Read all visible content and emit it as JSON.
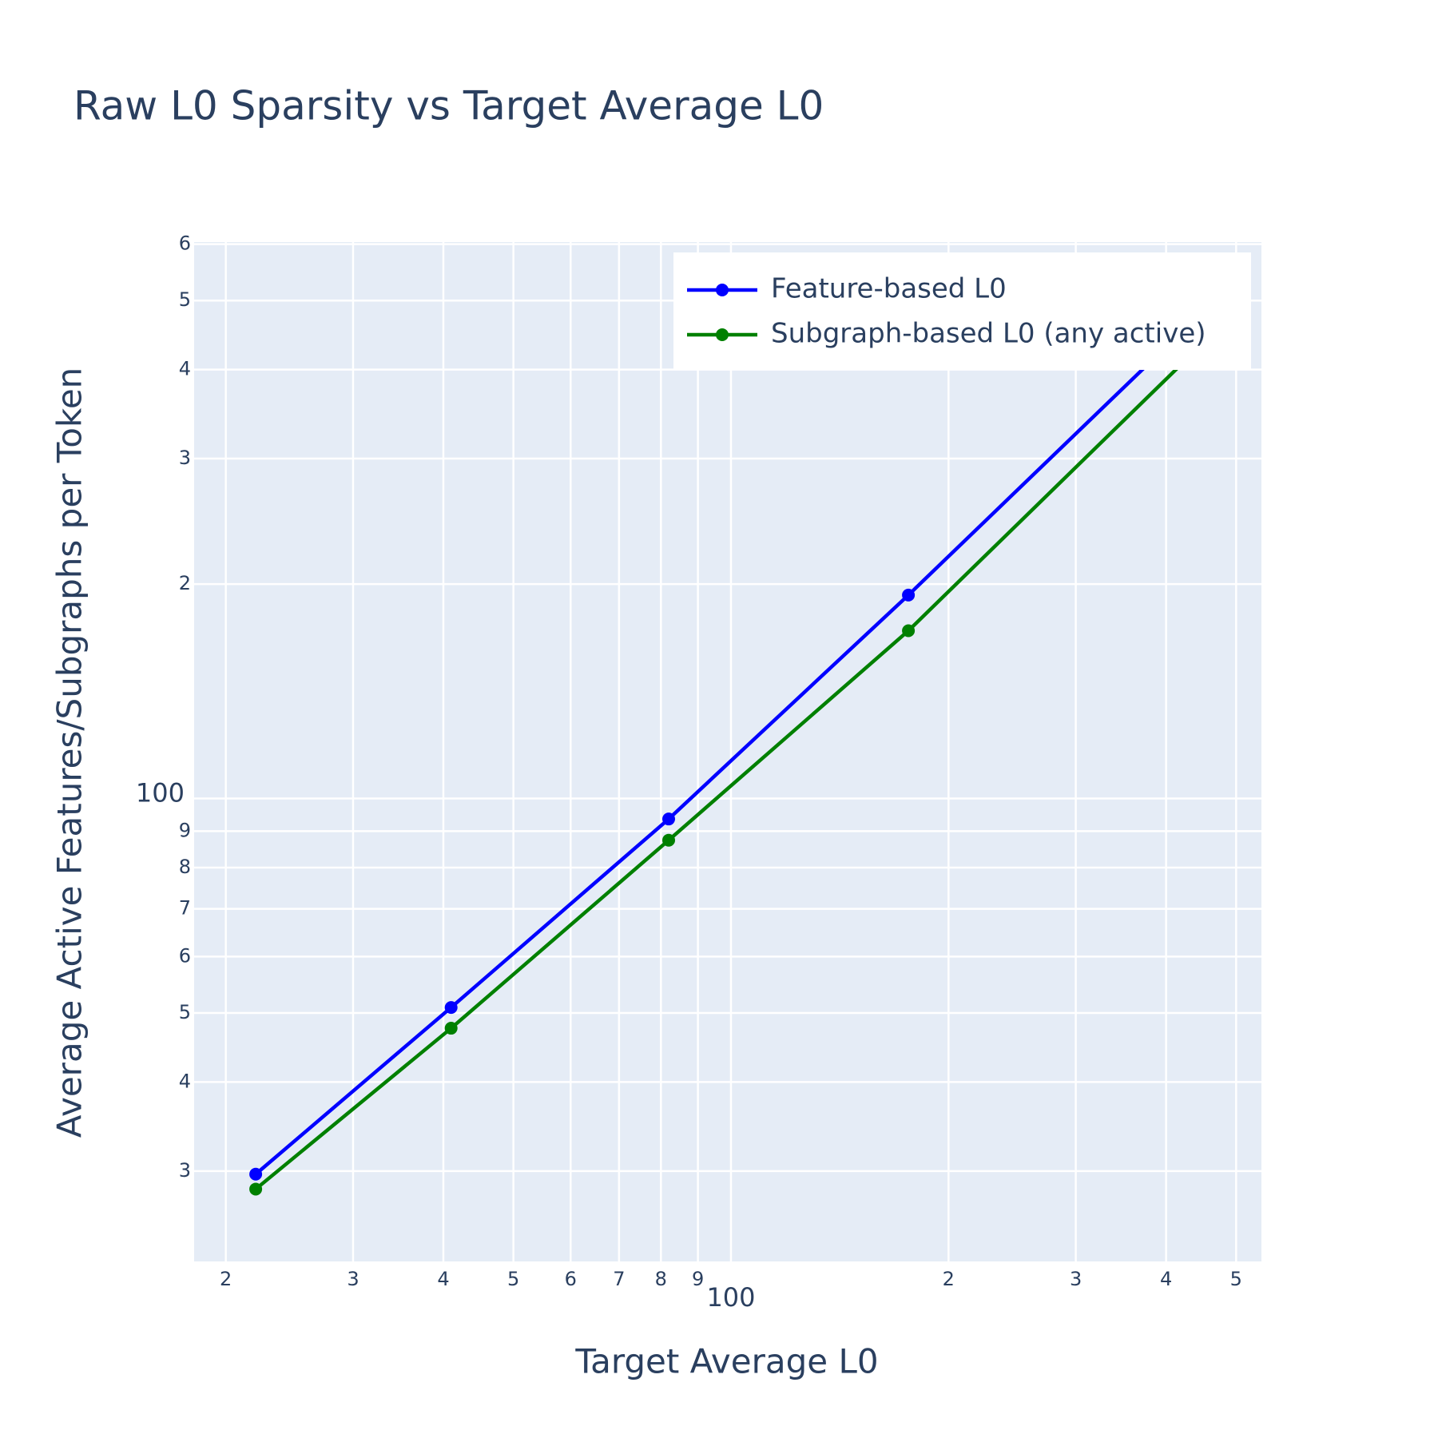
{
  "chart_data": {
    "type": "line",
    "title": "Raw L0 Sparsity vs Target Average L0",
    "x_label": "Target Average L0",
    "y_label": "Average Active Features/Subgraphs per Token",
    "x": [
      22,
      41,
      82,
      176,
      445
    ],
    "series": [
      {
        "name": "Feature-based L0",
        "color": "#0000ff",
        "values": [
          29.7,
          50.9,
          93.6,
          193,
          478
        ]
      },
      {
        "name": "Subgraph-based L0 (any active)",
        "color": "#008000",
        "values": [
          28.3,
          47.6,
          87.4,
          172,
          431
        ]
      }
    ],
    "xscale": "log",
    "yscale": "log",
    "xlim": [
      18.08,
      542
    ],
    "ylim": [
      22.4,
      604
    ],
    "xticks": [
      {
        "value": 20,
        "label": "2"
      },
      {
        "value": 30,
        "label": "3"
      },
      {
        "value": 40,
        "label": "4"
      },
      {
        "value": 50,
        "label": "5"
      },
      {
        "value": 60,
        "label": "6"
      },
      {
        "value": 70,
        "label": "7"
      },
      {
        "value": 80,
        "label": "8"
      },
      {
        "value": 90,
        "label": "9"
      },
      100,
      {
        "value": 200,
        "label": "2"
      },
      {
        "value": 300,
        "label": "3"
      },
      {
        "value": 400,
        "label": "4"
      },
      {
        "value": 500,
        "label": "5"
      }
    ],
    "yticks": [
      {
        "value": 30,
        "label": "3"
      },
      {
        "value": 40,
        "label": "4"
      },
      {
        "value": 50,
        "label": "5"
      },
      {
        "value": 60,
        "label": "6"
      },
      {
        "value": 70,
        "label": "7"
      },
      {
        "value": 80,
        "label": "8"
      },
      {
        "value": 90,
        "label": "9"
      },
      100,
      {
        "value": 200,
        "label": "2"
      },
      {
        "value": 300,
        "label": "3"
      },
      {
        "value": 400,
        "label": "4"
      },
      {
        "value": 500,
        "label": "5"
      },
      {
        "value": 600,
        "label": "6"
      }
    ],
    "grid": true,
    "legend": "top-right",
    "background": "#e5ecf6"
  }
}
